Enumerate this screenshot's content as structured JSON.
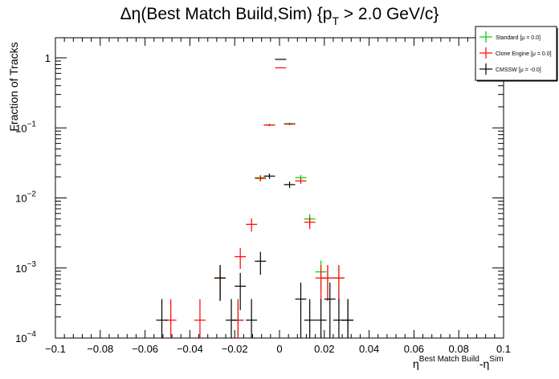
{
  "chart_data": {
    "type": "scatter",
    "title": {
      "prefix": "Δη(Best Match Build,Sim) {p",
      "sub": "T",
      "suffix": " > 2.0 GeV/c}"
    },
    "ylabel": "Fraction of Tracks",
    "xlabel": {
      "base1": "η",
      "sup1": "Best Match Build",
      "mid": "-η",
      "sup2": "Sim"
    },
    "xlim": [
      -0.1,
      0.1
    ],
    "ylim": [
      0.0001,
      2.0
    ],
    "y_log": true,
    "grid": false,
    "legend_position": "top-right",
    "x_ticks": [
      -0.1,
      -0.08,
      -0.06,
      -0.04,
      -0.02,
      0,
      0.02,
      0.04,
      0.06,
      0.08,
      0.1
    ],
    "x_tick_labels": [
      "−0.1",
      "−0.08",
      "−0.06",
      "−0.04",
      "−0.02",
      "0",
      "0.02",
      "0.04",
      "0.06",
      "0.08",
      "0.1"
    ],
    "y_ticks": [
      {
        "value": 0.0001,
        "base": "10",
        "exp": "−4"
      },
      {
        "value": 0.001,
        "base": "10",
        "exp": "−3"
      },
      {
        "value": 0.01,
        "base": "10",
        "exp": "−2"
      },
      {
        "value": 0.1,
        "base": "10",
        "exp": "−1"
      },
      {
        "value": 1,
        "base": "1",
        "exp": ""
      }
    ],
    "bin_halfwidth": 0.0025,
    "series": [
      {
        "name": "Standard",
        "legend_mu": "[μ = 0.0]",
        "color": "#00cc00",
        "points": [
          {
            "x": -0.0265,
            "y": 0.00072,
            "err": 0.00038
          },
          {
            "x": -0.0185,
            "y": 0.00018,
            "err": 0.00018
          },
          {
            "x": -0.0085,
            "y": 0.0195,
            "err": 0.0018
          },
          {
            "x": -0.0045,
            "y": 0.11,
            "err": 0.004
          },
          {
            "x": 0.0045,
            "y": 0.115,
            "err": 0.004
          },
          {
            "x": 0.0095,
            "y": 0.0195,
            "err": 0.0018
          },
          {
            "x": 0.0135,
            "y": 0.005,
            "err": 0.0009
          },
          {
            "x": 0.0185,
            "y": 0.00088,
            "err": 0.0004
          },
          {
            "x": 0.0215,
            "y": 0.00072,
            "err": 0.00038
          },
          {
            "x": 0.0265,
            "y": 0.00072,
            "err": 0.00038
          },
          {
            "x": 0.0305,
            "y": 0.00018,
            "err": 0.00018
          }
        ]
      },
      {
        "name": "Clone Engine",
        "legend_mu": "[μ = 0.0]",
        "color": "#ff0000",
        "points": [
          {
            "x": -0.0485,
            "y": 0.00018,
            "err": 0.00018
          },
          {
            "x": -0.0355,
            "y": 0.00018,
            "err": 0.00018
          },
          {
            "x": -0.0265,
            "y": 0.00072,
            "err": 0.00038
          },
          {
            "x": -0.0185,
            "y": 0.00018,
            "err": 0.00018
          },
          {
            "x": -0.0175,
            "y": 0.00145,
            "err": 0.00048
          },
          {
            "x": -0.0125,
            "y": 0.0042,
            "err": 0.0009
          },
          {
            "x": -0.0085,
            "y": 0.019,
            "err": 0.0018
          },
          {
            "x": -0.0045,
            "y": 0.11,
            "err": 0.004
          },
          {
            "x": 0.0005,
            "y": 0.72,
            "err": 0.01
          },
          {
            "x": 0.0045,
            "y": 0.113,
            "err": 0.004
          },
          {
            "x": 0.0095,
            "y": 0.0175,
            "err": 0.0017
          },
          {
            "x": 0.0135,
            "y": 0.0045,
            "err": 0.0009
          },
          {
            "x": 0.0185,
            "y": 0.00072,
            "err": 0.00038
          },
          {
            "x": 0.0215,
            "y": 0.00072,
            "err": 0.00038
          },
          {
            "x": 0.0265,
            "y": 0.00072,
            "err": 0.00038
          },
          {
            "x": 0.0305,
            "y": 0.00018,
            "err": 0.00018
          }
        ]
      },
      {
        "name": "CMSSW",
        "legend_mu": "[μ = -0.0]",
        "color": "#000000",
        "points": [
          {
            "x": -0.0525,
            "y": 0.00018,
            "err": 0.00018
          },
          {
            "x": -0.0265,
            "y": 0.00072,
            "err": 0.00038
          },
          {
            "x": -0.0215,
            "y": 0.00018,
            "err": 0.00018
          },
          {
            "x": -0.0175,
            "y": 0.00055,
            "err": 0.0003
          },
          {
            "x": -0.0125,
            "y": 0.00018,
            "err": 0.00018
          },
          {
            "x": -0.0085,
            "y": 0.00125,
            "err": 0.00045
          },
          {
            "x": -0.0045,
            "y": 0.0205,
            "err": 0.0018
          },
          {
            "x": 0.0005,
            "y": 0.95,
            "err": 0.01
          },
          {
            "x": 0.0045,
            "y": 0.0155,
            "err": 0.0016
          },
          {
            "x": 0.0095,
            "y": 0.00036,
            "err": 0.00026
          },
          {
            "x": 0.0135,
            "y": 0.00018,
            "err": 0.00018
          },
          {
            "x": 0.0185,
            "y": 0.00018,
            "err": 0.00018
          },
          {
            "x": 0.0225,
            "y": 0.00036,
            "err": 0.00026
          },
          {
            "x": 0.0265,
            "y": 0.00018,
            "err": 0.00018
          },
          {
            "x": 0.0305,
            "y": 0.00018,
            "err": 0.00018
          }
        ]
      }
    ]
  }
}
